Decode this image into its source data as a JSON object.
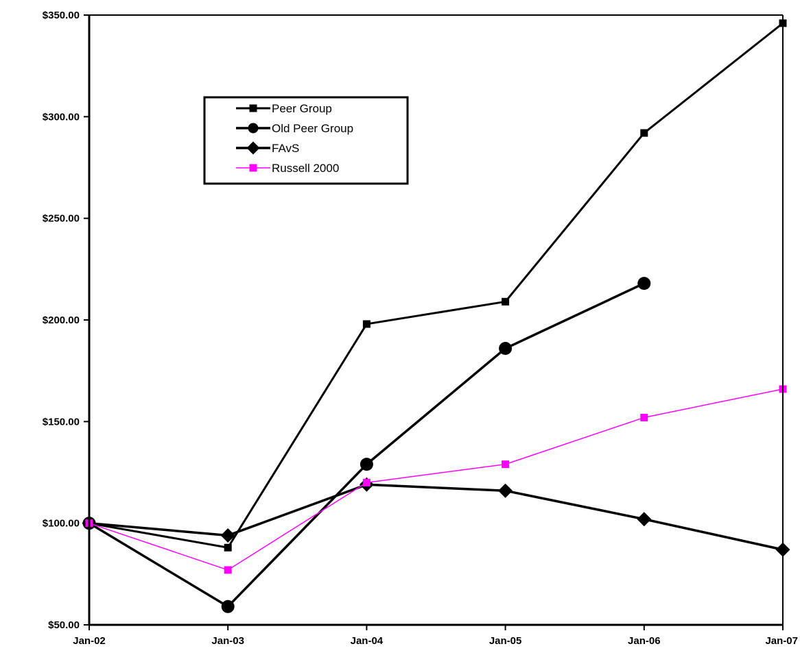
{
  "chart_data": {
    "type": "line",
    "title": "",
    "xlabel": "",
    "ylabel": "",
    "categories": [
      "Jan-02",
      "Jan-03",
      "Jan-04",
      "Jan-05",
      "Jan-06",
      "Jan-07"
    ],
    "ylim": [
      50,
      350
    ],
    "y_ticks": [
      50,
      100,
      150,
      200,
      250,
      300,
      350
    ],
    "y_tick_labels": [
      "$50.00",
      "$100.00",
      "$150.00",
      "$200.00",
      "$250.00",
      "$300.00",
      "$350.00"
    ],
    "grid": false,
    "legend_position": "top-left",
    "series": [
      {
        "name": "Peer Group",
        "values": [
          100,
          88,
          198,
          209,
          292,
          346
        ],
        "color": "#000000",
        "marker": "square"
      },
      {
        "name": "Old Peer Group",
        "values": [
          100,
          59,
          129,
          186,
          218,
          null
        ],
        "color": "#000000",
        "marker": "circle"
      },
      {
        "name": "FAvS",
        "values": [
          100,
          94,
          119,
          116,
          102,
          87
        ],
        "color": "#000000",
        "marker": "diamond"
      },
      {
        "name": "Russell 2000",
        "values": [
          100,
          77,
          120,
          129,
          152,
          166
        ],
        "color": "#ff00ff",
        "marker": "square"
      }
    ]
  }
}
